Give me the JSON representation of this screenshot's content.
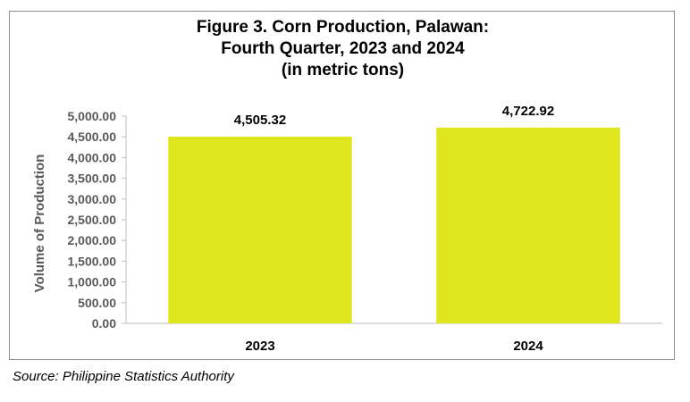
{
  "chart_data": {
    "type": "bar",
    "title_lines": [
      "Figure 3. Corn Production, Palawan:",
      "Fourth Quarter, 2023 and 2024",
      "(in metric tons)"
    ],
    "categories": [
      "2023",
      "2024"
    ],
    "values": [
      4505.32,
      4722.92
    ],
    "data_labels": [
      "4,505.32",
      "4,722.92"
    ],
    "ylabel": "Volume of Production",
    "xlabel": "",
    "ylim": [
      0,
      5000
    ],
    "yticks": [
      0,
      500,
      1000,
      1500,
      2000,
      2500,
      3000,
      3500,
      4000,
      4500,
      5000
    ],
    "ytick_labels": [
      "0.00",
      "500.00",
      "1,000.00",
      "1,500.00",
      "2,000.00",
      "2,500.00",
      "3,000.00",
      "3,500.00",
      "4,000.00",
      "4,500.00",
      "5,000.00"
    ],
    "bar_color": "#dfe61e",
    "axis_color": "#bfbfbf",
    "grid": false,
    "legend": "none"
  },
  "source": "Source: Philippine Statistics Authority"
}
